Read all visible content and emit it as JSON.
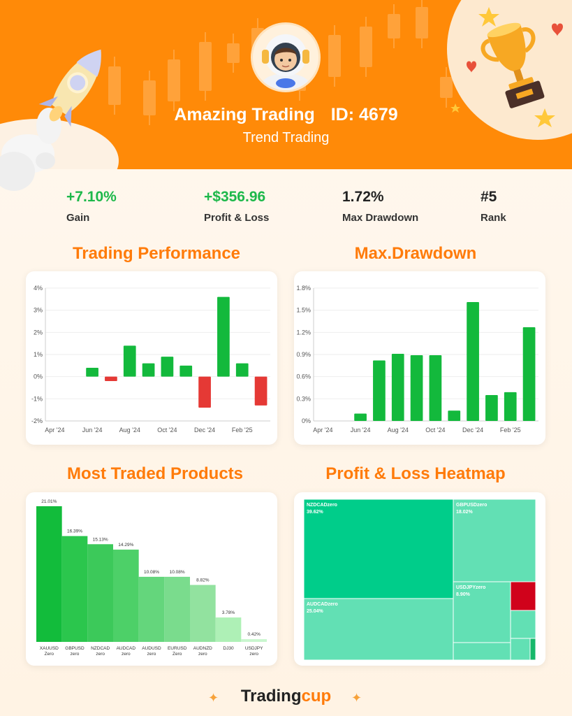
{
  "header": {
    "name": "Amazing Trading",
    "id_label": "ID: 4679",
    "strategy": "Trend Trading"
  },
  "stats": [
    {
      "value": "+7.10%",
      "label": "Gain",
      "positive": true
    },
    {
      "value": "+$356.96",
      "label": "Profit & Loss",
      "positive": true
    },
    {
      "value": "1.72%",
      "label": "Max Drawdown",
      "positive": false
    },
    {
      "value": "#5",
      "label": "Rank",
      "positive": false
    }
  ],
  "sections": {
    "performance": "Trading Performance",
    "drawdown": "Max.Drawdown",
    "products": "Most Traded Products",
    "heatmap": "Profit & Loss Heatmap"
  },
  "footer": {
    "brand_a": "Trading",
    "brand_b": "cup"
  },
  "colors": {
    "accent": "#ff8a08",
    "green": "#13b93c",
    "red": "#e53935",
    "heat_main": "#00cd8a",
    "heat_light": "#62e0b4",
    "heat_red": "#d0021b"
  },
  "chart_data": [
    {
      "type": "bar",
      "title": "Trading Performance",
      "x_ticks": [
        "Apr '24",
        "Jun '24",
        "Aug '24",
        "Oct '24",
        "Dec '24",
        "Feb '25"
      ],
      "y_ticks": [
        "4%",
        "3%",
        "2%",
        "1%",
        "0%",
        "-1%",
        "-2%"
      ],
      "ylim": [
        -2,
        4
      ],
      "unit": "%",
      "categories": [
        "Apr '24",
        "May '24",
        "Jun '24",
        "Jul '24",
        "Aug '24",
        "Sep '24",
        "Oct '24",
        "Nov '24",
        "Dec '24",
        "Jan '25",
        "Feb '25",
        "Mar '25"
      ],
      "values": [
        0,
        0,
        0.4,
        -0.2,
        1.4,
        0.6,
        0.9,
        0.5,
        -1.4,
        3.6,
        0.6,
        -1.3
      ]
    },
    {
      "type": "bar",
      "title": "Max.Drawdown",
      "x_ticks": [
        "Apr '24",
        "Jun '24",
        "Aug '24",
        "Oct '24",
        "Dec '24",
        "Feb '25"
      ],
      "y_ticks": [
        "1.8%",
        "1.5%",
        "1.2%",
        "0.9%",
        "0.6%",
        "0.3%",
        "0%"
      ],
      "ylim": [
        0,
        1.8
      ],
      "unit": "%",
      "categories": [
        "Apr '24",
        "May '24",
        "Jun '24",
        "Jul '24",
        "Aug '24",
        "Sep '24",
        "Oct '24",
        "Nov '24",
        "Dec '24",
        "Jan '25",
        "Feb '25",
        "Mar '25"
      ],
      "values": [
        0,
        0,
        0.1,
        0.82,
        0.91,
        0.89,
        0.89,
        0.14,
        1.61,
        0.35,
        0.39,
        1.27
      ]
    },
    {
      "type": "bar",
      "title": "Most Traded Products",
      "categories": [
        "XAUUSD Zero",
        "GBPUSD zero",
        "NZDCAD zero",
        "AUDCAD zero",
        "AUDUSD zero",
        "EURUSD Zero",
        "AUDNZD zero",
        "DJ30",
        "USDJPY zero"
      ],
      "value_labels": [
        "21.01%",
        "16.39%",
        "15.13%",
        "14.29%",
        "10.08%",
        "10.08%",
        "8.82%",
        "3.78%",
        "0.42%"
      ],
      "values": [
        21.01,
        16.39,
        15.13,
        14.29,
        10.08,
        10.08,
        8.82,
        3.78,
        0.42
      ],
      "colors": [
        "#12bc3b",
        "#2bc64d",
        "#3cc95a",
        "#4dd068",
        "#64d67c",
        "#7adc8d",
        "#92e29f",
        "#aef0b6",
        "#c9f6cf"
      ]
    },
    {
      "type": "heatmap",
      "title": "Profit & Loss Heatmap",
      "cells": [
        {
          "name": "NZDCADzero",
          "value": "39.62%"
        },
        {
          "name": "AUDCADzero",
          "value": "25.04%"
        },
        {
          "name": "GBPUSDzero",
          "value": "18.02%"
        },
        {
          "name": "USDJPYzero",
          "value": "8.90%"
        }
      ]
    }
  ]
}
